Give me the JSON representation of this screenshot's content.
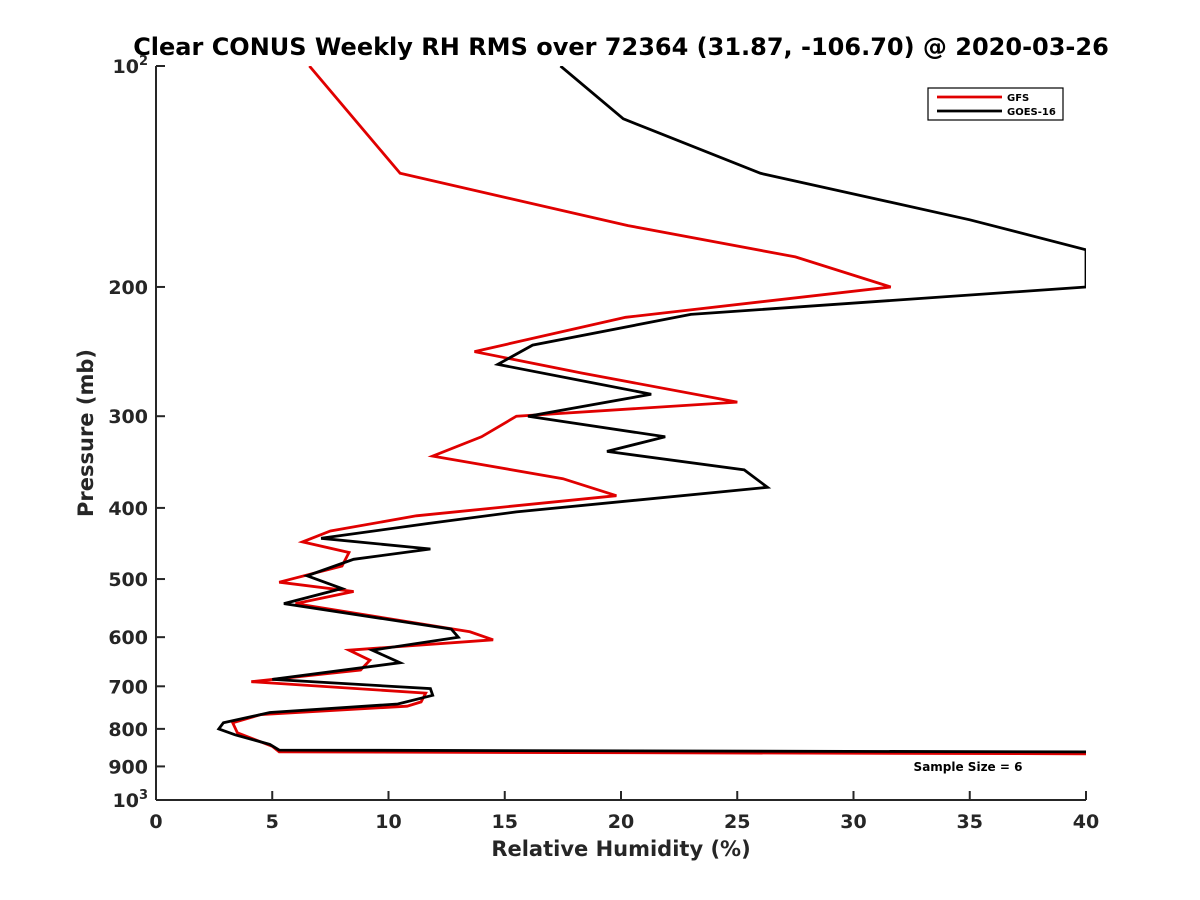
{
  "chart_data": {
    "type": "line",
    "title": "Clear CONUS Weekly RH RMS over 72364 (31.87, -106.70) @ 2020-03-26",
    "xlabel": "Relative Humidity (%)",
    "ylabel": "Pressure (mb)",
    "xlim": [
      0,
      40
    ],
    "ylim": [
      100,
      1000
    ],
    "yscale": "log",
    "y_reversed": true,
    "x_ticks": [
      0,
      5,
      10,
      15,
      20,
      25,
      30,
      35,
      40
    ],
    "x_tick_labels": [
      "0",
      "5",
      "10",
      "15",
      "20",
      "25",
      "30",
      "35",
      "40"
    ],
    "y_ticks": [
      100,
      200,
      300,
      400,
      500,
      600,
      700,
      800,
      900,
      1000
    ],
    "y_tick_labels": [
      {
        "base": "10",
        "exp": "2"
      },
      {
        "base": "200",
        "exp": ""
      },
      {
        "base": "300",
        "exp": ""
      },
      {
        "base": "400",
        "exp": ""
      },
      {
        "base": "500",
        "exp": ""
      },
      {
        "base": "600",
        "exp": ""
      },
      {
        "base": "700",
        "exp": ""
      },
      {
        "base": "800",
        "exp": ""
      },
      {
        "base": "900",
        "exp": ""
      },
      {
        "base": "10",
        "exp": "3"
      }
    ],
    "grid": false,
    "legend_position": "top-right",
    "annotation": "Sample Size = 6",
    "series": [
      {
        "name": "GFS",
        "color": "#e00000",
        "points": [
          [
            6.6,
            100
          ],
          [
            10.5,
            140
          ],
          [
            20.3,
            165
          ],
          [
            27.5,
            182
          ],
          [
            31.6,
            200
          ],
          [
            20.2,
            220
          ],
          [
            13.7,
            245
          ],
          [
            18.3,
            262
          ],
          [
            25.0,
            287
          ],
          [
            15.5,
            300
          ],
          [
            14.0,
            320
          ],
          [
            11.9,
            340
          ],
          [
            17.5,
            365
          ],
          [
            19.8,
            385
          ],
          [
            11.2,
            410
          ],
          [
            7.5,
            430
          ],
          [
            6.3,
            445
          ],
          [
            8.3,
            460
          ],
          [
            8.0,
            480
          ],
          [
            5.3,
            505
          ],
          [
            8.5,
            520
          ],
          [
            6.0,
            540
          ],
          [
            13.5,
            590
          ],
          [
            14.5,
            605
          ],
          [
            8.3,
            625
          ],
          [
            9.2,
            645
          ],
          [
            8.8,
            665
          ],
          [
            4.1,
            690
          ],
          [
            11.6,
            715
          ],
          [
            11.4,
            735
          ],
          [
            10.8,
            745
          ],
          [
            4.5,
            765
          ],
          [
            3.3,
            785
          ],
          [
            3.5,
            810
          ],
          [
            5.0,
            845
          ],
          [
            5.3,
            860
          ],
          [
            40.0,
            865
          ]
        ]
      },
      {
        "name": "GOES-16",
        "color": "#000000",
        "points": [
          [
            17.4,
            100
          ],
          [
            20.1,
            118
          ],
          [
            26.0,
            140
          ],
          [
            35.0,
            162
          ],
          [
            40.0,
            178
          ],
          [
            40.0,
            200
          ],
          [
            23.0,
            218
          ],
          [
            16.2,
            240
          ],
          [
            14.7,
            255
          ],
          [
            21.3,
            280
          ],
          [
            16.0,
            300
          ],
          [
            21.9,
            320
          ],
          [
            19.4,
            335
          ],
          [
            25.3,
            355
          ],
          [
            26.3,
            375
          ],
          [
            15.5,
            405
          ],
          [
            11.7,
            420
          ],
          [
            7.1,
            440
          ],
          [
            11.8,
            455
          ],
          [
            8.5,
            470
          ],
          [
            6.5,
            495
          ],
          [
            8.0,
            515
          ],
          [
            5.5,
            540
          ],
          [
            12.7,
            585
          ],
          [
            13.0,
            600
          ],
          [
            9.3,
            625
          ],
          [
            10.5,
            650
          ],
          [
            5.0,
            685
          ],
          [
            11.8,
            705
          ],
          [
            11.9,
            720
          ],
          [
            10.4,
            740
          ],
          [
            4.9,
            760
          ],
          [
            2.9,
            785
          ],
          [
            2.7,
            800
          ],
          [
            3.4,
            815
          ],
          [
            4.9,
            840
          ],
          [
            5.3,
            855
          ],
          [
            40.0,
            860
          ]
        ]
      }
    ]
  }
}
